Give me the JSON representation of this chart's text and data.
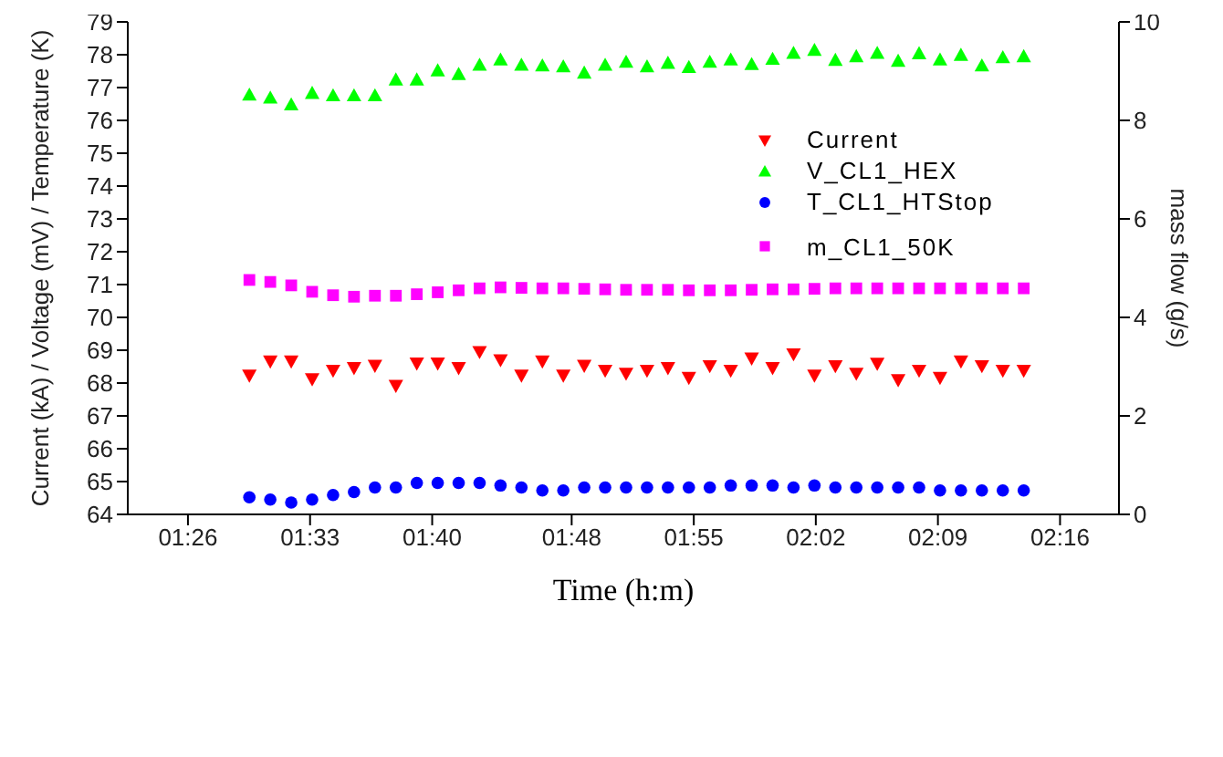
{
  "chart_data": {
    "type": "scatter",
    "xlabel": "Time (h:m)",
    "ylabel": "Current (kA) / Voltage (mV) / Temperature (K)",
    "y2label": "mass flow (g/s)",
    "x": [
      1.492,
      1.512,
      1.532,
      1.552,
      1.572,
      1.592,
      1.612,
      1.632,
      1.652,
      1.672,
      1.692,
      1.712,
      1.732,
      1.752,
      1.772,
      1.792,
      1.812,
      1.832,
      1.852,
      1.872,
      1.892,
      1.912,
      1.932,
      1.952,
      1.972,
      1.992,
      2.012,
      2.032,
      2.052,
      2.072,
      2.092,
      2.112,
      2.132,
      2.152,
      2.172,
      2.192,
      2.212,
      2.232
    ],
    "series": [
      {
        "name": "Current",
        "color": "#ff0000",
        "marker": "triangle-down",
        "values": [
          68.23,
          68.66,
          68.66,
          68.12,
          68.38,
          68.46,
          68.53,
          67.92,
          68.6,
          68.6,
          68.46,
          68.95,
          68.7,
          68.23,
          68.66,
          68.23,
          68.53,
          68.38,
          68.29,
          68.38,
          68.46,
          68.16,
          68.52,
          68.38,
          68.75,
          68.46,
          68.88,
          68.23,
          68.52,
          68.29,
          68.59,
          68.09,
          68.38,
          68.16,
          68.66,
          68.52,
          68.38,
          68.38
        ]
      },
      {
        "name": "V_CL1_HEX",
        "color": "#00ff00",
        "marker": "triangle",
        "values": [
          76.78,
          76.69,
          76.48,
          76.83,
          76.76,
          76.76,
          76.76,
          77.24,
          77.24,
          77.52,
          77.41,
          77.69,
          77.85,
          77.69,
          77.67,
          77.64,
          77.45,
          77.69,
          77.78,
          77.64,
          77.75,
          77.62,
          77.78,
          77.85,
          77.71,
          77.87,
          78.05,
          78.14,
          77.84,
          77.95,
          78.05,
          77.81,
          78.04,
          77.85,
          77.99,
          77.67,
          77.92,
          77.95
        ]
      },
      {
        "name": "T_CL1_HTStop",
        "color": "#0000ff",
        "marker": "circle",
        "values": [
          64.52,
          64.45,
          64.36,
          64.45,
          64.59,
          64.68,
          64.82,
          64.82,
          64.96,
          64.96,
          64.96,
          64.96,
          64.88,
          64.82,
          64.73,
          64.73,
          64.82,
          64.82,
          64.82,
          64.82,
          64.82,
          64.82,
          64.82,
          64.88,
          64.88,
          64.88,
          64.82,
          64.88,
          64.82,
          64.82,
          64.82,
          64.82,
          64.82,
          64.73,
          64.73,
          64.73,
          64.73,
          64.73
        ]
      },
      {
        "name": "m_CL1_50K",
        "color": "#ff00ff",
        "marker": "square",
        "axis": "y2",
        "values": [
          4.76,
          4.72,
          4.65,
          4.52,
          4.45,
          4.42,
          4.44,
          4.44,
          4.47,
          4.51,
          4.55,
          4.59,
          4.61,
          4.6,
          4.59,
          4.59,
          4.58,
          4.57,
          4.56,
          4.56,
          4.56,
          4.55,
          4.55,
          4.55,
          4.56,
          4.57,
          4.57,
          4.58,
          4.59,
          4.59,
          4.59,
          4.59,
          4.59,
          4.59,
          4.59,
          4.59,
          4.59,
          4.59
        ]
      }
    ],
    "xlim": [
      1.3758,
      2.323
    ],
    "xticks": [
      {
        "value": 1.4333,
        "label": "01:26"
      },
      {
        "value": 1.55,
        "label": "01:33"
      },
      {
        "value": 1.6667,
        "label": "01:40"
      },
      {
        "value": 1.8,
        "label": "01:48"
      },
      {
        "value": 1.9167,
        "label": "01:55"
      },
      {
        "value": 2.0333,
        "label": "02:02"
      },
      {
        "value": 2.15,
        "label": "02:09"
      },
      {
        "value": 2.2667,
        "label": "02:16"
      }
    ],
    "ylim": [
      64,
      79
    ],
    "yticks": [
      64,
      65,
      66,
      67,
      68,
      69,
      70,
      71,
      72,
      73,
      74,
      75,
      76,
      77,
      78,
      79
    ],
    "y2lim": [
      0,
      10
    ],
    "y2ticks": [
      0,
      2,
      4,
      6,
      8,
      10
    ],
    "grid": false,
    "legend": "top right"
  }
}
